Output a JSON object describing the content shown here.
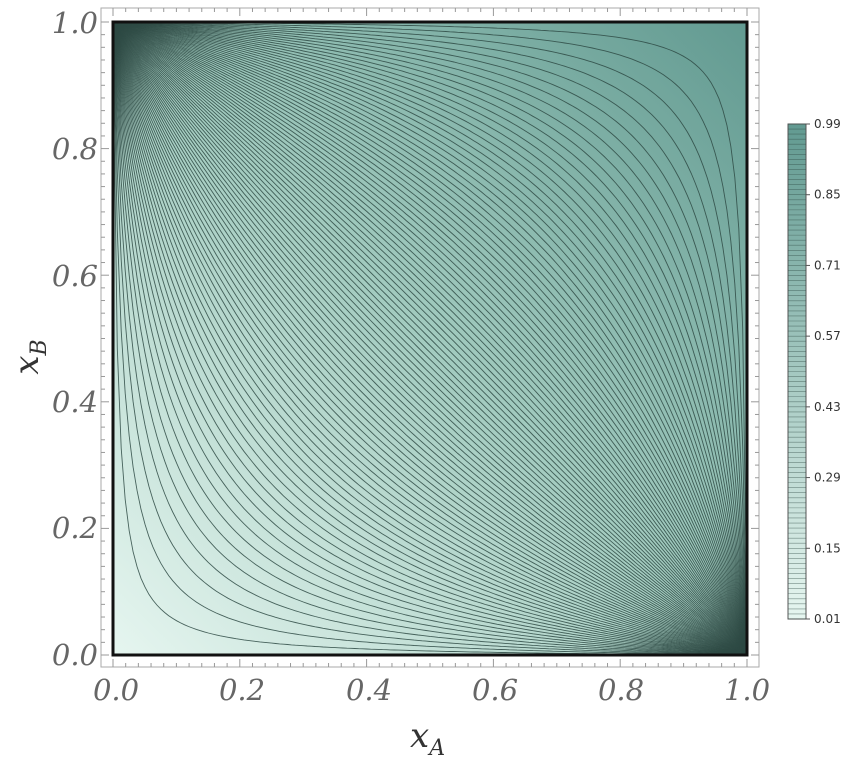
{
  "chart_data": {
    "type": "contour",
    "title": "",
    "xlabel": {
      "base": "x",
      "sub": "A"
    },
    "ylabel": {
      "base": "x",
      "sub": "B"
    },
    "x_range": [
      0.0,
      1.0
    ],
    "y_range": [
      0.0,
      1.0
    ],
    "x_ticks": [
      "0.0",
      "0.2",
      "0.4",
      "0.6",
      "0.8",
      "1.0"
    ],
    "y_ticks": [
      "0.0",
      "0.2",
      "0.4",
      "0.6",
      "0.8",
      "1.0"
    ],
    "x_tick_values": [
      0.0,
      0.2,
      0.4,
      0.6,
      0.8,
      1.0
    ],
    "y_tick_values": [
      0.0,
      0.2,
      0.4,
      0.6,
      0.8,
      1.0
    ],
    "contour_levels": {
      "start": 0.01,
      "end": 0.99,
      "step": 0.01
    },
    "colorbar": {
      "range": [
        0.01,
        0.99
      ],
      "tick_labels": [
        "0.01",
        "0.15",
        "0.29",
        "0.43",
        "0.57",
        "0.71",
        "0.85",
        "0.99"
      ],
      "tick_values": [
        0.01,
        0.15,
        0.29,
        0.43,
        0.57,
        0.71,
        0.85,
        0.99
      ],
      "color_low": "#e6f6f0",
      "color_high": "#629a91"
    },
    "contour_line_color": "#2e4a44",
    "grid": false,
    "legend": "colorbar-right"
  }
}
